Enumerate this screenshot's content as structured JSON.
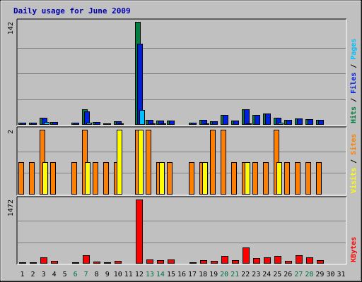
{
  "chart_data": {
    "title": "Daily usage for June 2009",
    "type": "bar",
    "days": [
      "1",
      "2",
      "3",
      "4",
      "5",
      "6",
      "7",
      "8",
      "9",
      "10",
      "11",
      "12",
      "13",
      "14",
      "15",
      "16",
      "17",
      "18",
      "19",
      "20",
      "21",
      "22",
      "23",
      "24",
      "25",
      "26",
      "27",
      "28",
      "29",
      "30",
      "31"
    ],
    "weekend_days": [
      "6",
      "7",
      "13",
      "14",
      "20",
      "21",
      "27",
      "28"
    ],
    "colors": {
      "background": "#c0c0c0",
      "hits": "#008040",
      "files": "#0020e0",
      "pages": "#00c0ff",
      "visits": "#ffff00",
      "sites": "#ff8000",
      "kbytes": "#ff0000",
      "weekend_label": "#007040",
      "weekday_label": "#000000"
    },
    "panels": [
      {
        "id": "hits_files_pages",
        "ymax_label": "142",
        "ymax": 142,
        "labels": [
          {
            "text": "Hits",
            "color": "#008040"
          },
          {
            "text": " / ",
            "color": "#000000"
          },
          {
            "text": "Files",
            "color": "#0020e0"
          },
          {
            "text": " / ",
            "color": "#000000"
          },
          {
            "text": "Pages",
            "color": "#00c0ff"
          }
        ],
        "series": [
          {
            "name": "Hits",
            "color": "#008040",
            "values": [
              3,
              3,
              10,
              4,
              0,
              3,
              21,
              4,
              2,
              5,
              0,
              142,
              7,
              6,
              6,
              0,
              3,
              7,
              5,
              14,
              6,
              21,
              14,
              16,
              10,
              7,
              9,
              8,
              7,
              0,
              0
            ]
          },
          {
            "name": "Files",
            "color": "#0020e0",
            "values": [
              3,
              3,
              10,
              4,
              0,
              3,
              18,
              4,
              2,
              5,
              0,
              112,
              7,
              6,
              6,
              0,
              3,
              7,
              5,
              14,
              6,
              21,
              14,
              16,
              10,
              7,
              9,
              8,
              7,
              0,
              0
            ]
          },
          {
            "name": "Pages",
            "color": "#00c0ff",
            "values": [
              0,
              0,
              4,
              0,
              0,
              0,
              3,
              0,
              0,
              2,
              0,
              20,
              1,
              2,
              0,
              0,
              0,
              2,
              0,
              0,
              0,
              2,
              0,
              0,
              3,
              0,
              0,
              0,
              0,
              0,
              0
            ]
          }
        ]
      },
      {
        "id": "visits_sites",
        "ymax_label": "2",
        "ymax": 2,
        "labels": [
          {
            "text": "Visits",
            "color": "#ffff00"
          },
          {
            "text": " / ",
            "color": "#000000"
          },
          {
            "text": "Sites",
            "color": "#ff8000"
          }
        ],
        "series": [
          {
            "name": "Sites",
            "color": "#ff8000",
            "values": [
              1,
              1,
              2,
              1,
              0,
              1,
              2,
              1,
              1,
              1,
              0,
              2,
              2,
              1,
              1,
              0,
              1,
              1,
              2,
              2,
              1,
              1,
              1,
              1,
              2,
              1,
              1,
              1,
              1,
              0,
              0
            ]
          },
          {
            "name": "Visits",
            "color": "#ffff00",
            "values": [
              0,
              0,
              1,
              0,
              0,
              0,
              1,
              0,
              0,
              2,
              0,
              2,
              0,
              1,
              0,
              0,
              0,
              1,
              0,
              0,
              0,
              1,
              0,
              0,
              1,
              0,
              0,
              0,
              0,
              0,
              0
            ]
          }
        ]
      },
      {
        "id": "kbytes",
        "ymax_label": "1472",
        "ymax": 1472,
        "labels": [
          {
            "text": "KBytes",
            "color": "#ff0000"
          }
        ],
        "series": [
          {
            "name": "KBytes",
            "color": "#ff0000",
            "values": [
              20,
              20,
              150,
              70,
              0,
              20,
              190,
              50,
              20,
              60,
              0,
              1472,
              100,
              80,
              100,
              0,
              20,
              80,
              60,
              180,
              80,
              370,
              130,
              150,
              180,
              70,
              200,
              140,
              80,
              0,
              0
            ]
          }
        ]
      }
    ]
  }
}
